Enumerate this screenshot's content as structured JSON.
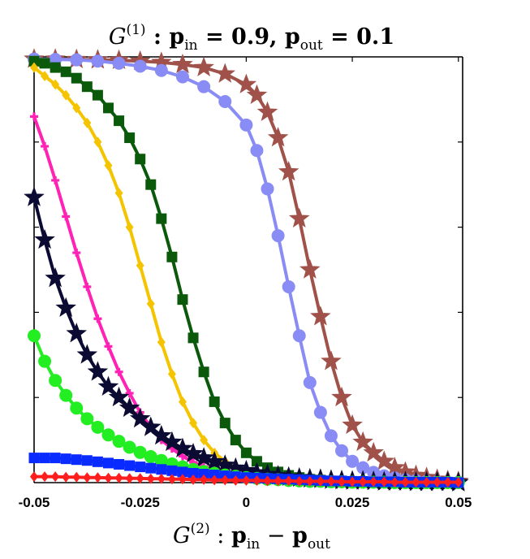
{
  "chart_data": {
    "type": "line",
    "title": "G(1) : pin = 0.9,  pout = 0.1",
    "title_parts": {
      "g": "G",
      "sup": "(1)",
      "colon": " : ",
      "p1": "p",
      "sub1": "in",
      "eq1": " = 0.9,  ",
      "p2": "p",
      "sub2": "out",
      "eq2": " = 0.1"
    },
    "xlabel": "G(2) : pin − pout",
    "xlabel_parts": {
      "g": "G",
      "sup": "(2)",
      "colon": " : ",
      "p1": "p",
      "sub1": "in",
      "minus": " − ",
      "p2": "p",
      "sub2": "out"
    },
    "ylabel": "",
    "xlim": [
      -0.05,
      0.051
    ],
    "ylim": [
      0,
      1
    ],
    "xticks": [
      -0.05,
      -0.025,
      0,
      0.025,
      0.05
    ],
    "xtick_labels": [
      "-0.05",
      "-0.025",
      "0",
      "0.025",
      "0.05"
    ],
    "yticks": [
      0.2,
      0.4,
      0.6,
      0.8
    ],
    "x": [
      -0.05,
      -0.0475,
      -0.045,
      -0.0425,
      -0.04,
      -0.0375,
      -0.035,
      -0.0325,
      -0.03,
      -0.0275,
      -0.025,
      -0.0225,
      -0.02,
      -0.0175,
      -0.015,
      -0.0125,
      -0.01,
      -0.0075,
      -0.005,
      -0.0025,
      0,
      0.0025,
      0.005,
      0.0075,
      0.01,
      0.0125,
      0.015,
      0.0175,
      0.02,
      0.0225,
      0.025,
      0.0275,
      0.03,
      0.0325,
      0.035,
      0.0375,
      0.04,
      0.0425,
      0.045,
      0.0475,
      0.05
    ],
    "series": [
      {
        "name": "brown-stars",
        "color": "#A0524A",
        "marker": "star",
        "x": [
          -0.05,
          -0.045,
          -0.04,
          -0.035,
          -0.03,
          -0.025,
          -0.02,
          -0.015,
          -0.01,
          -0.005,
          0,
          0.0025,
          0.005,
          0.0075,
          0.01,
          0.0125,
          0.015,
          0.0175,
          0.02,
          0.0225,
          0.025,
          0.0275,
          0.03,
          0.0325,
          0.035,
          0.0375,
          0.04,
          0.0425,
          0.045,
          0.0475,
          0.05
        ],
        "values": [
          0.995,
          0.995,
          0.994,
          0.993,
          0.992,
          0.99,
          0.987,
          0.982,
          0.975,
          0.96,
          0.935,
          0.91,
          0.87,
          0.81,
          0.73,
          0.62,
          0.5,
          0.39,
          0.285,
          0.2,
          0.135,
          0.095,
          0.07,
          0.05,
          0.035,
          0.025,
          0.017,
          0.012,
          0.008,
          0.005,
          0.003
        ]
      },
      {
        "name": "periwinkle-circles",
        "color": "#8A8CF5",
        "marker": "circle",
        "x": [
          -0.05,
          -0.045,
          -0.04,
          -0.035,
          -0.03,
          -0.025,
          -0.02,
          -0.015,
          -0.01,
          -0.005,
          0,
          0.0025,
          0.005,
          0.0075,
          0.01,
          0.0125,
          0.015,
          0.0175,
          0.02,
          0.0225,
          0.025,
          0.0275,
          0.03,
          0.0325,
          0.035,
          0.0375,
          0.04,
          0.0425,
          0.045,
          0.0475,
          0.05
        ],
        "values": [
          0.995,
          0.994,
          0.993,
          0.99,
          0.985,
          0.978,
          0.968,
          0.953,
          0.93,
          0.895,
          0.84,
          0.78,
          0.69,
          0.58,
          0.46,
          0.345,
          0.235,
          0.165,
          0.11,
          0.075,
          0.05,
          0.035,
          0.024,
          0.016,
          0.011,
          0.007,
          0.005,
          0.003,
          0.002,
          0.001,
          0.001
        ]
      },
      {
        "name": "dark-green-squares",
        "color": "#0B5A0B",
        "marker": "square",
        "x": [
          -0.05,
          -0.0475,
          -0.045,
          -0.0425,
          -0.04,
          -0.0375,
          -0.035,
          -0.0325,
          -0.03,
          -0.0275,
          -0.025,
          -0.0225,
          -0.02,
          -0.0175,
          -0.015,
          -0.0125,
          -0.01,
          -0.0075,
          -0.005,
          -0.0025,
          0,
          0.0025,
          0.005,
          0.0075,
          0.01,
          0.0125,
          0.015,
          0.0175,
          0.02,
          0.0225,
          0.025,
          0.0275,
          0.03,
          0.0325,
          0.035,
          0.0375,
          0.04,
          0.0425,
          0.045,
          0.0475,
          0.05
        ],
        "values": [
          0.99,
          0.985,
          0.975,
          0.965,
          0.95,
          0.93,
          0.91,
          0.88,
          0.85,
          0.81,
          0.76,
          0.7,
          0.62,
          0.53,
          0.43,
          0.34,
          0.26,
          0.19,
          0.14,
          0.1,
          0.07,
          0.05,
          0.035,
          0.025,
          0.017,
          0.012,
          0.008,
          0.006,
          0.004,
          0.003,
          0.002,
          0.001,
          0.001,
          0.001,
          0.0,
          0.0,
          0.0,
          0.0,
          0.0,
          0.0,
          0.0
        ]
      },
      {
        "name": "gold-diamonds",
        "color": "#F5C400",
        "marker": "diamond",
        "x": [
          -0.05,
          -0.0475,
          -0.045,
          -0.0425,
          -0.04,
          -0.0375,
          -0.035,
          -0.0325,
          -0.03,
          -0.0275,
          -0.025,
          -0.0225,
          -0.02,
          -0.0175,
          -0.015,
          -0.0125,
          -0.01,
          -0.0075,
          -0.005,
          -0.0025,
          0,
          0.0025,
          0.005,
          0.0075,
          0.01,
          0.0125,
          0.015,
          0.0175,
          0.02,
          0.0225,
          0.025,
          0.0275,
          0.03,
          0.0325,
          0.035,
          0.0375,
          0.04,
          0.0425,
          0.045,
          0.0475,
          0.05
        ],
        "values": [
          0.975,
          0.955,
          0.935,
          0.91,
          0.88,
          0.845,
          0.8,
          0.745,
          0.68,
          0.6,
          0.51,
          0.42,
          0.33,
          0.255,
          0.19,
          0.14,
          0.1,
          0.07,
          0.05,
          0.035,
          0.025,
          0.018,
          0.013,
          0.009,
          0.006,
          0.004,
          0.003,
          0.002,
          0.001,
          0.001,
          0.0,
          0.0,
          0.0,
          0.0,
          0.0,
          0.0,
          0.0,
          0.0,
          0.0,
          0.0,
          0.0
        ]
      },
      {
        "name": "magenta-crosses",
        "color": "#FF22B4",
        "marker": "cross",
        "x": [
          -0.05,
          -0.0475,
          -0.045,
          -0.0425,
          -0.04,
          -0.0375,
          -0.035,
          -0.0325,
          -0.03,
          -0.0275,
          -0.025,
          -0.0225,
          -0.02,
          -0.0175,
          -0.015,
          -0.0125,
          -0.01,
          -0.0075,
          -0.005,
          -0.0025,
          0,
          0.0025,
          0.005,
          0.0075,
          0.01,
          0.0125,
          0.015,
          0.0175,
          0.02,
          0.0225,
          0.025,
          0.0275,
          0.03,
          0.0325,
          0.035,
          0.0375,
          0.04,
          0.0425,
          0.045,
          0.0475,
          0.05
        ],
        "values": [
          0.86,
          0.79,
          0.71,
          0.625,
          0.54,
          0.46,
          0.385,
          0.32,
          0.26,
          0.21,
          0.165,
          0.13,
          0.1,
          0.08,
          0.062,
          0.048,
          0.038,
          0.03,
          0.023,
          0.018,
          0.014,
          0.011,
          0.008,
          0.006,
          0.005,
          0.004,
          0.003,
          0.002,
          0.002,
          0.001,
          0.001,
          0.001,
          0.0,
          0.0,
          0.0,
          0.0,
          0.0,
          0.0,
          0.0,
          0.0,
          0.0
        ]
      },
      {
        "name": "navy-stars",
        "color": "#0A0A32",
        "marker": "star",
        "x": [
          -0.05,
          -0.0475,
          -0.045,
          -0.0425,
          -0.04,
          -0.0375,
          -0.035,
          -0.0325,
          -0.03,
          -0.0275,
          -0.025,
          -0.0225,
          -0.02,
          -0.0175,
          -0.015,
          -0.0125,
          -0.01,
          -0.0075,
          -0.005,
          -0.0025,
          0,
          0.0025,
          0.005,
          0.0075,
          0.01,
          0.0125,
          0.015,
          0.0175,
          0.02,
          0.0225,
          0.025,
          0.0275,
          0.03,
          0.0325,
          0.035,
          0.0375,
          0.04,
          0.0425,
          0.045,
          0.0475,
          0.05
        ],
        "values": [
          0.67,
          0.57,
          0.48,
          0.41,
          0.35,
          0.3,
          0.26,
          0.225,
          0.2,
          0.175,
          0.15,
          0.13,
          0.11,
          0.095,
          0.08,
          0.068,
          0.058,
          0.049,
          0.041,
          0.034,
          0.028,
          0.023,
          0.019,
          0.016,
          0.013,
          0.011,
          0.009,
          0.008,
          0.006,
          0.005,
          0.004,
          0.004,
          0.003,
          0.002,
          0.002,
          0.002,
          0.001,
          0.001,
          0.001,
          0.001,
          0.0
        ]
      },
      {
        "name": "green-circles",
        "color": "#22EE22",
        "marker": "circle",
        "x": [
          -0.05,
          -0.0475,
          -0.045,
          -0.0425,
          -0.04,
          -0.0375,
          -0.035,
          -0.0325,
          -0.03,
          -0.0275,
          -0.025,
          -0.0225,
          -0.02,
          -0.0175,
          -0.015,
          -0.0125,
          -0.01,
          -0.0075,
          -0.005,
          -0.0025,
          0,
          0.0025,
          0.005,
          0.0075,
          0.01,
          0.0125,
          0.015,
          0.0175,
          0.02,
          0.0225,
          0.025,
          0.0275,
          0.03,
          0.0325,
          0.035,
          0.0375,
          0.04,
          0.0425,
          0.045,
          0.0475,
          0.05
        ],
        "values": [
          0.345,
          0.285,
          0.24,
          0.205,
          0.175,
          0.15,
          0.13,
          0.112,
          0.097,
          0.083,
          0.071,
          0.061,
          0.052,
          0.044,
          0.037,
          0.031,
          0.026,
          0.022,
          0.018,
          0.015,
          0.012,
          0.01,
          0.008,
          0.007,
          0.005,
          0.004,
          0.003,
          0.003,
          0.002,
          0.002,
          0.001,
          0.001,
          0.001,
          0.001,
          0.0,
          0.0,
          0.0,
          0.0,
          0.0,
          0.0,
          0.0
        ]
      },
      {
        "name": "blue-squares",
        "color": "#0A2BFF",
        "marker": "square",
        "x": [
          -0.05,
          -0.0475,
          -0.045,
          -0.0425,
          -0.04,
          -0.0375,
          -0.035,
          -0.0325,
          -0.03,
          -0.0275,
          -0.025,
          -0.0225,
          -0.02,
          -0.0175,
          -0.015,
          -0.0125,
          -0.01,
          -0.0075,
          -0.005,
          -0.0025,
          0,
          0.0025,
          0.005,
          0.0075,
          0.01,
          0.0125,
          0.015,
          0.0175,
          0.02,
          0.0225,
          0.025,
          0.0275,
          0.03,
          0.0325,
          0.035,
          0.0375,
          0.04,
          0.0425,
          0.045,
          0.0475,
          0.05
        ],
        "values": [
          0.058,
          0.058,
          0.058,
          0.056,
          0.054,
          0.052,
          0.049,
          0.046,
          0.043,
          0.04,
          0.037,
          0.034,
          0.031,
          0.028,
          0.025,
          0.022,
          0.02,
          0.018,
          0.016,
          0.014,
          0.012,
          0.011,
          0.01,
          0.009,
          0.008,
          0.007,
          0.006,
          0.005,
          0.004,
          0.004,
          0.003,
          0.003,
          0.002,
          0.002,
          0.002,
          0.001,
          0.001,
          0.001,
          0.001,
          0.001,
          0.0
        ]
      },
      {
        "name": "red-diamonds",
        "color": "#FF1E1E",
        "marker": "diamond",
        "x": [
          -0.05,
          -0.0475,
          -0.045,
          -0.0425,
          -0.04,
          -0.0375,
          -0.035,
          -0.0325,
          -0.03,
          -0.0275,
          -0.025,
          -0.0225,
          -0.02,
          -0.0175,
          -0.015,
          -0.0125,
          -0.01,
          -0.0075,
          -0.005,
          -0.0025,
          0,
          0.0025,
          0.005,
          0.0075,
          0.01,
          0.0125,
          0.015,
          0.0175,
          0.02,
          0.0225,
          0.025,
          0.0275,
          0.03,
          0.0325,
          0.035,
          0.0375,
          0.04,
          0.0425,
          0.045,
          0.0475,
          0.05
        ],
        "values": [
          0.014,
          0.014,
          0.014,
          0.013,
          0.013,
          0.012,
          0.012,
          0.011,
          0.011,
          0.01,
          0.01,
          0.009,
          0.009,
          0.008,
          0.008,
          0.007,
          0.007,
          0.006,
          0.006,
          0.005,
          0.005,
          0.005,
          0.004,
          0.004,
          0.004,
          0.003,
          0.003,
          0.003,
          0.003,
          0.002,
          0.002,
          0.002,
          0.002,
          0.002,
          0.001,
          0.001,
          0.001,
          0.001,
          0.001,
          0.001,
          0.001
        ]
      }
    ]
  }
}
